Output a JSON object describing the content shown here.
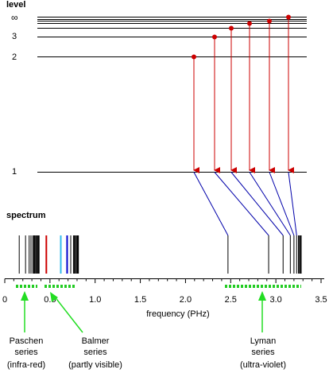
{
  "title": "level",
  "spectrum_title": "spectrum",
  "level_labels": [
    "∞",
    "3",
    "2",
    "1"
  ],
  "axis": {
    "label": "frequency (PHz)",
    "ticks": [
      "0",
      "0.5",
      "1.0",
      "1.5",
      "2.0",
      "2.5",
      "3.0",
      "3.5"
    ],
    "range": [
      0,
      3.5
    ]
  },
  "series": [
    {
      "name": "Paschen series",
      "note": "(infra-red)",
      "line1": "Paschen",
      "line2": "series",
      "line3": "(infra-red)"
    },
    {
      "name": "Balmer series",
      "note": "(partly visible)",
      "line1": "Balmer",
      "line2": "series",
      "line3": "(partly visible)"
    },
    {
      "name": "Lyman series",
      "note": "(ultra-violet)",
      "line1": "Lyman",
      "line2": "series",
      "line3": "(ultra-violet)"
    }
  ],
  "colors": {
    "arrow": "#cc0000",
    "connector": "#0000aa",
    "series_bracket": "#22cc22",
    "annotation_arrow": "#22dd22",
    "balmer_red": "#cc0000",
    "balmer_cyan": "#33bbee",
    "balmer_blue": "#0000cc"
  },
  "chart_data": {
    "type": "spectrum",
    "lyman_frequencies_PHz": [
      2.47,
      2.92,
      3.08,
      3.16,
      3.2,
      3.23,
      3.25,
      3.26
    ],
    "balmer_frequencies_PHz": [
      0.46,
      0.62,
      0.69,
      0.73,
      0.76,
      0.77,
      0.78,
      0.79
    ],
    "paschen_frequencies_PHz": [
      0.16,
      0.23,
      0.27,
      0.29,
      0.31,
      0.32,
      0.33,
      0.34,
      0.35,
      0.355,
      0.36
    ]
  }
}
